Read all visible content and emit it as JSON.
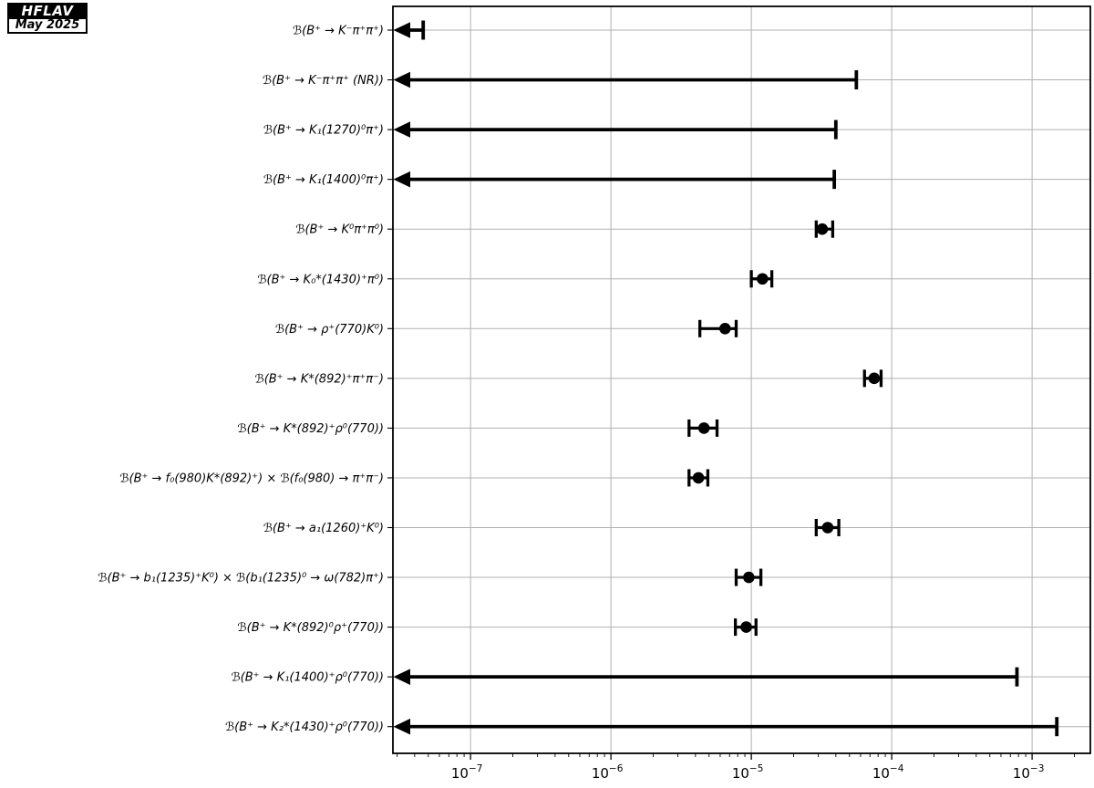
{
  "logo": {
    "line1": "HFLAV",
    "line2": "May 2025"
  },
  "chart_data": {
    "type": "scatter",
    "subtype": "horizontal-error-bars-with-upper-limits",
    "title": "",
    "xlabel": "",
    "ylabel": "",
    "x_scale": "log",
    "xlim": [
      2.8e-08,
      0.0026
    ],
    "grid": true,
    "colors": {
      "data": "#000000",
      "grid": "#b0b0b0",
      "spine": "#000000",
      "background": "#ffffff"
    },
    "x_ticks": [
      {
        "value": 1e-07,
        "base": "10",
        "exp": "−7"
      },
      {
        "value": 1e-06,
        "base": "10",
        "exp": "−6"
      },
      {
        "value": 1e-05,
        "base": "10",
        "exp": "−5"
      },
      {
        "value": 0.0001,
        "base": "10",
        "exp": "−4"
      },
      {
        "value": 0.001,
        "base": "10",
        "exp": "−3"
      }
    ],
    "rows": [
      {
        "label": "ℬ(B⁺ → K⁻π⁺π⁺)",
        "type": "upper_limit",
        "limit": 4.6e-08
      },
      {
        "label": "ℬ(B⁺ → K⁻π⁺π⁺ (NR))",
        "type": "upper_limit",
        "limit": 5.6e-05
      },
      {
        "label": "ℬ(B⁺ → K₁(1270)⁰π⁺)",
        "type": "upper_limit",
        "limit": 4e-05
      },
      {
        "label": "ℬ(B⁺ → K₁(1400)⁰π⁺)",
        "type": "upper_limit",
        "limit": 3.9e-05
      },
      {
        "label": "ℬ(B⁺ → K⁰π⁺π⁰)",
        "type": "measurement",
        "value": 3.2e-05,
        "low": 2.9e-05,
        "high": 3.8e-05
      },
      {
        "label": "ℬ(B⁺ → K₀*(1430)⁺π⁰)",
        "type": "measurement",
        "value": 1.2e-05,
        "low": 1e-05,
        "high": 1.4e-05
      },
      {
        "label": "ℬ(B⁺ → ρ⁺(770)K⁰)",
        "type": "measurement",
        "value": 6.5e-06,
        "low": 4.3e-06,
        "high": 7.8e-06
      },
      {
        "label": "ℬ(B⁺ → K*(892)⁺π⁺π⁻)",
        "type": "measurement",
        "value": 7.5e-05,
        "low": 6.4e-05,
        "high": 8.4e-05
      },
      {
        "label": "ℬ(B⁺ → K*(892)⁺ρ⁰(770))",
        "type": "measurement",
        "value": 4.6e-06,
        "low": 3.6e-06,
        "high": 5.7e-06
      },
      {
        "label": "ℬ(B⁺ → f₀(980)K*(892)⁺) × ℬ(f₀(980) → π⁺π⁻)",
        "type": "measurement",
        "value": 4.2e-06,
        "low": 3.6e-06,
        "high": 4.9e-06
      },
      {
        "label": "ℬ(B⁺ → a₁(1260)⁺K⁰)",
        "type": "measurement",
        "value": 3.5e-05,
        "low": 2.9e-05,
        "high": 4.2e-05
      },
      {
        "label": "ℬ(B⁺ → b₁(1235)⁺K⁰) × ℬ(b₁(1235)⁰ → ω(782)π⁺)",
        "type": "measurement",
        "value": 9.6e-06,
        "low": 7.8e-06,
        "high": 1.17e-05
      },
      {
        "label": "ℬ(B⁺ → K*(892)⁰ρ⁺(770))",
        "type": "measurement",
        "value": 9.2e-06,
        "low": 7.7e-06,
        "high": 1.08e-05
      },
      {
        "label": "ℬ(B⁺ → K₁(1400)⁺ρ⁰(770))",
        "type": "upper_limit",
        "limit": 0.00078
      },
      {
        "label": "ℬ(B⁺ → K₂*(1430)⁺ρ⁰(770))",
        "type": "upper_limit",
        "limit": 0.0015
      }
    ]
  }
}
